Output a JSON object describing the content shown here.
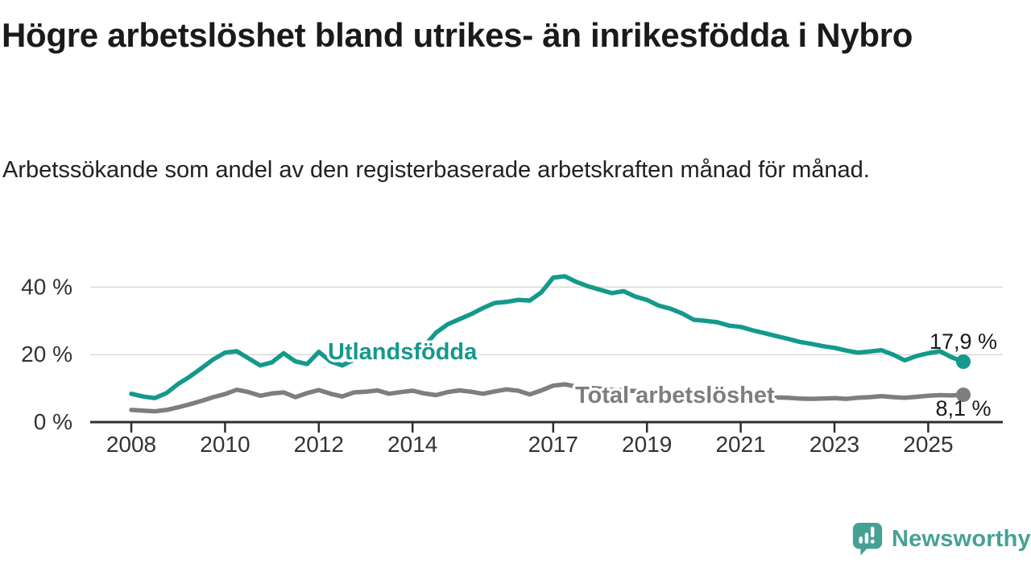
{
  "title": "Högre arbetslöshet bland utrikes- än inrikesfödda i Nybro",
  "subtitle": "Arbetssökande som andel av den registerbaserade arbetskraften månad för månad.",
  "branding": {
    "name": "Newsworthy",
    "logo_icon": "chart-speech-bubble-icon",
    "color": "#46a195"
  },
  "chart_data": {
    "type": "line",
    "title": "Högre arbetslöshet bland utrikes- än inrikesfödda i Nybro",
    "subtitle": "Arbetssökande som andel av den registerbaserade arbetskraften månad för månad.",
    "xlabel": "",
    "ylabel": "",
    "unit": "%",
    "grid": "horizontal",
    "legend": "inline-labels",
    "xlim": [
      2007.9,
      2026.5
    ],
    "ylim": [
      0,
      44
    ],
    "axis_color": "#2e2e2e",
    "grid_color": "#d9d9d9",
    "y_ticks": [
      {
        "value": 0,
        "label": "0 %"
      },
      {
        "value": 20,
        "label": "20 %"
      },
      {
        "value": 40,
        "label": "40 %"
      }
    ],
    "x_ticks": [
      {
        "year": 2008,
        "label": "2008"
      },
      {
        "year": 2010,
        "label": "2010"
      },
      {
        "year": 2012,
        "label": "2012"
      },
      {
        "year": 2014,
        "label": "2014"
      },
      {
        "year": 2017,
        "label": "2017"
      },
      {
        "year": 2019,
        "label": "2019"
      },
      {
        "year": 2021,
        "label": "2021"
      },
      {
        "year": 2023,
        "label": "2023"
      },
      {
        "year": 2025,
        "label": "2025"
      }
    ],
    "series": [
      {
        "name": "Utlandsfödda",
        "color": "#14998c",
        "x_start": 2008.0,
        "x_step": 0.25,
        "end_label": "17,9 %",
        "end_value": 17.9,
        "values": [
          8.4,
          7.6,
          7.1,
          8.6,
          11.3,
          13.5,
          16.0,
          18.6,
          20.6,
          21.0,
          18.9,
          16.8,
          17.7,
          20.4,
          18.0,
          17.2,
          20.8,
          18.0,
          16.8,
          18.5,
          19.5,
          20.2,
          19.8,
          20.6,
          21.2,
          22.5,
          26.5,
          29.0,
          30.5,
          32.0,
          33.8,
          35.3,
          35.6,
          36.2,
          36.0,
          38.5,
          42.8,
          43.2,
          41.5,
          40.2,
          39.2,
          38.2,
          38.8,
          37.2,
          36.2,
          34.5,
          33.6,
          32.2,
          30.3,
          30.0,
          29.6,
          28.6,
          28.2,
          27.2,
          26.4,
          25.5,
          24.7,
          23.8,
          23.2,
          22.5,
          22.0,
          21.2,
          20.6,
          20.9,
          21.3,
          20.0,
          18.3,
          19.6,
          20.4,
          21.0,
          19.2,
          17.9
        ]
      },
      {
        "name": "Total arbetslöshet",
        "color": "#7e7e7e",
        "x_start": 2008.0,
        "x_step": 0.25,
        "end_label": "8,1 %",
        "end_value": 8.1,
        "values": [
          3.6,
          3.4,
          3.2,
          3.6,
          4.4,
          5.3,
          6.3,
          7.4,
          8.3,
          9.6,
          8.9,
          7.8,
          8.5,
          8.8,
          7.4,
          8.6,
          9.5,
          8.4,
          7.6,
          8.8,
          9.0,
          9.4,
          8.4,
          8.9,
          9.3,
          8.5,
          8.0,
          8.9,
          9.4,
          9.0,
          8.4,
          9.1,
          9.7,
          9.3,
          8.2,
          9.4,
          10.8,
          11.2,
          10.5,
          10.2,
          9.9,
          9.6,
          9.4,
          9.2,
          9.0,
          8.8,
          8.7,
          8.5,
          8.6,
          8.8,
          8.6,
          8.3,
          8.1,
          7.8,
          7.5,
          7.3,
          7.2,
          7.0,
          6.9,
          7.0,
          7.1,
          6.9,
          7.2,
          7.4,
          7.7,
          7.4,
          7.2,
          7.5,
          7.8,
          8.0,
          7.9,
          8.1
        ]
      }
    ]
  }
}
